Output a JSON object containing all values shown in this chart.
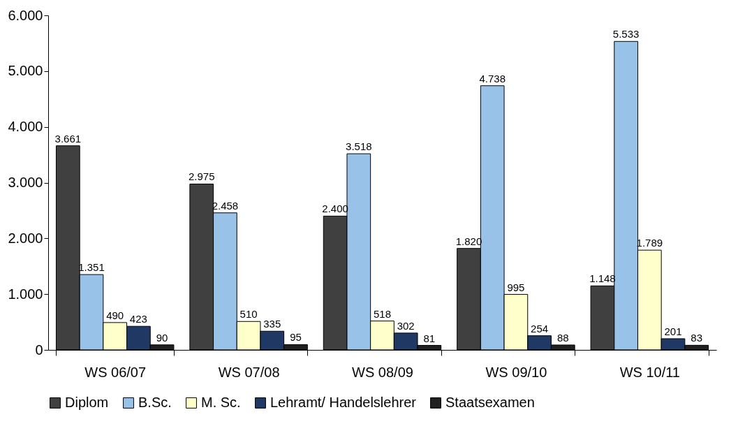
{
  "chart_data": {
    "type": "bar",
    "categories": [
      "WS 06/07",
      "WS 07/08",
      "WS 08/09",
      "WS 09/10",
      "WS 10/11"
    ],
    "series": [
      {
        "name": "Diplom",
        "color": "#404040",
        "values": [
          3661,
          2975,
          2400,
          1820,
          1148
        ],
        "value_labels": [
          "3.661",
          "2.975",
          "2.400",
          "1.820",
          "1.148"
        ]
      },
      {
        "name": "B.Sc.",
        "color": "#99c2e8",
        "values": [
          1351,
          2458,
          3518,
          4738,
          5533
        ],
        "value_labels": [
          "1.351",
          "2.458",
          "3.518",
          "4.738",
          "5.533"
        ]
      },
      {
        "name": "M. Sc.",
        "color": "#ffffcc",
        "values": [
          490,
          510,
          518,
          995,
          1789
        ],
        "value_labels": [
          "490",
          "510",
          "518",
          "995",
          "1.789"
        ]
      },
      {
        "name": "Lehramt/ Handelslehrer",
        "color": "#1f3864",
        "values": [
          423,
          335,
          302,
          254,
          201
        ],
        "value_labels": [
          "423",
          "335",
          "302",
          "254",
          "201"
        ]
      },
      {
        "name": "Staatsexamen",
        "color": "#202020",
        "values": [
          90,
          95,
          81,
          88,
          83
        ],
        "value_labels": [
          "90",
          "95",
          "81",
          "88",
          "83"
        ]
      }
    ],
    "ylim": [
      0,
      6000
    ],
    "yticks": [
      0,
      {
        "value": 1000,
        "label": "1.000"
      },
      {
        "value": 2000,
        "label": "2.000"
      },
      {
        "value": 3000,
        "label": "3.000"
      },
      {
        "value": 4000,
        "label": "4.000"
      },
      {
        "value": 5000,
        "label": "5.000"
      },
      {
        "value": 6000,
        "label": "6.000"
      }
    ],
    "grid": false,
    "legend": "bottom"
  }
}
